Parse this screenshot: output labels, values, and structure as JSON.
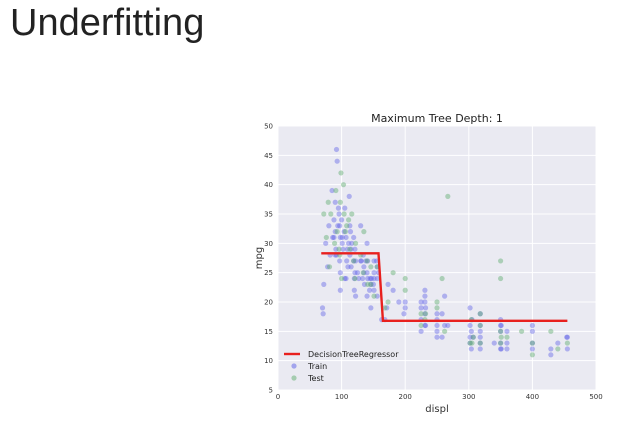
{
  "slide": {
    "title": "Underfitting"
  },
  "chart_data": {
    "type": "scatter",
    "title": "Maximum Tree Depth: 1",
    "xlabel": "displ",
    "ylabel": "mpg",
    "xlim": [
      0,
      500
    ],
    "ylim": [
      5,
      50
    ],
    "xticks": [
      0,
      100,
      200,
      300,
      400,
      500
    ],
    "yticks": [
      5,
      10,
      15,
      20,
      25,
      30,
      35,
      40,
      45,
      50
    ],
    "grid": true,
    "legend_position": "lower-left",
    "colors": {
      "background": "#eaeaf2",
      "grid": "#ffffff",
      "train": "#5a5ee8",
      "test": "#5fae6e",
      "regressor": "#e8201e"
    },
    "legend": [
      "DecisionTreeRegressor",
      "Train",
      "Test"
    ],
    "regressor": {
      "name": "DecisionTreeRegressor",
      "points": [
        [
          68,
          28.3
        ],
        [
          158,
          28.3
        ],
        [
          165,
          16.8
        ],
        [
          455,
          16.8
        ]
      ]
    },
    "series": [
      {
        "name": "Train",
        "points": [
          [
            70,
            19
          ],
          [
            71,
            18
          ],
          [
            72,
            23
          ],
          [
            75,
            30
          ],
          [
            78,
            26
          ],
          [
            80,
            33
          ],
          [
            82,
            28
          ],
          [
            85,
            39
          ],
          [
            86,
            31
          ],
          [
            88,
            34
          ],
          [
            90,
            37
          ],
          [
            90,
            32
          ],
          [
            90,
            28
          ],
          [
            91,
            29
          ],
          [
            92,
            46
          ],
          [
            93,
            44
          ],
          [
            95,
            36
          ],
          [
            96,
            35
          ],
          [
            97,
            33
          ],
          [
            97,
            27
          ],
          [
            98,
            31
          ],
          [
            98,
            25
          ],
          [
            98,
            22
          ],
          [
            100,
            34
          ],
          [
            101,
            30
          ],
          [
            102,
            29
          ],
          [
            104,
            32
          ],
          [
            105,
            24
          ],
          [
            105,
            36
          ],
          [
            107,
            24
          ],
          [
            108,
            27
          ],
          [
            110,
            26
          ],
          [
            112,
            38
          ],
          [
            113,
            28
          ],
          [
            114,
            32
          ],
          [
            115,
            26
          ],
          [
            116,
            30
          ],
          [
            119,
            31
          ],
          [
            120,
            24
          ],
          [
            120,
            22
          ],
          [
            121,
            25
          ],
          [
            122,
            27
          ],
          [
            122,
            21
          ],
          [
            125,
            25
          ],
          [
            130,
            33
          ],
          [
            130,
            27
          ],
          [
            133,
            24
          ],
          [
            134,
            28
          ],
          [
            135,
            26
          ],
          [
            136,
            23
          ],
          [
            140,
            30
          ],
          [
            140,
            25
          ],
          [
            140,
            21
          ],
          [
            141,
            27
          ],
          [
            144,
            22
          ],
          [
            145,
            24
          ],
          [
            146,
            19
          ],
          [
            150,
            23
          ],
          [
            151,
            27
          ],
          [
            151,
            25
          ],
          [
            151,
            22
          ],
          [
            155,
            27
          ],
          [
            156,
            26
          ],
          [
            156,
            21
          ],
          [
            163,
            17
          ],
          [
            168,
            17
          ],
          [
            171,
            19
          ],
          [
            173,
            23
          ],
          [
            181,
            22
          ],
          [
            190,
            20
          ],
          [
            198,
            18
          ],
          [
            200,
            20
          ],
          [
            200,
            19
          ],
          [
            225,
            20
          ],
          [
            225,
            19
          ],
          [
            225,
            17
          ],
          [
            231,
            20
          ],
          [
            231,
            22
          ],
          [
            231,
            18
          ],
          [
            232,
            19
          ],
          [
            250,
            16
          ],
          [
            250,
            18
          ],
          [
            250,
            17
          ],
          [
            258,
            18
          ],
          [
            262,
            16
          ],
          [
            267,
            16
          ],
          [
            302,
            14
          ],
          [
            302,
            16
          ],
          [
            302,
            19
          ],
          [
            304,
            15
          ],
          [
            305,
            17
          ],
          [
            307,
            14
          ],
          [
            318,
            15
          ],
          [
            318,
            14
          ],
          [
            318,
            16
          ],
          [
            318,
            13
          ],
          [
            340,
            13
          ],
          [
            350,
            15
          ],
          [
            350,
            13
          ],
          [
            350,
            16
          ],
          [
            350,
            17
          ],
          [
            351,
            16
          ],
          [
            360,
            12
          ],
          [
            360,
            13
          ],
          [
            400,
            16
          ],
          [
            400,
            15
          ],
          [
            400,
            13
          ],
          [
            429,
            12
          ],
          [
            440,
            13
          ],
          [
            454,
            14
          ],
          [
            455,
            14
          ],
          [
            88,
            31
          ],
          [
            92,
            28
          ],
          [
            94,
            33
          ],
          [
            101,
            31
          ],
          [
            107,
            31
          ],
          [
            109,
            29
          ],
          [
            111,
            30
          ],
          [
            113,
            33
          ],
          [
            115,
            29
          ],
          [
            119,
            27
          ],
          [
            121,
            29
          ],
          [
            127,
            24
          ],
          [
            131,
            27
          ],
          [
            135,
            25
          ],
          [
            138,
            27
          ],
          [
            141,
            24
          ],
          [
            146,
            23
          ],
          [
            147,
            24
          ],
          [
            151,
            24
          ],
          [
            156,
            24
          ],
          [
            158,
            25
          ],
          [
            232,
            16
          ],
          [
            250,
            14
          ],
          [
            258,
            14
          ],
          [
            302,
            13
          ],
          [
            304,
            12
          ],
          [
            318,
            12
          ],
          [
            318,
            18
          ],
          [
            350,
            12
          ],
          [
            351,
            12
          ],
          [
            360,
            15
          ],
          [
            400,
            12
          ],
          [
            429,
            11
          ],
          [
            455,
            12
          ],
          [
            225,
            15
          ],
          [
            231,
            21
          ],
          [
            231,
            16
          ],
          [
            250,
            15
          ],
          [
            262,
            21
          ]
        ]
      },
      {
        "name": "Test",
        "points": [
          [
            72,
            35
          ],
          [
            76,
            31
          ],
          [
            79,
            37
          ],
          [
            81,
            26
          ],
          [
            83,
            35
          ],
          [
            89,
            30
          ],
          [
            91,
            39
          ],
          [
            93,
            32
          ],
          [
            96,
            29
          ],
          [
            98,
            37
          ],
          [
            99,
            42
          ],
          [
            100,
            24
          ],
          [
            103,
            40
          ],
          [
            104,
            35
          ],
          [
            106,
            32
          ],
          [
            111,
            34
          ],
          [
            113,
            29
          ],
          [
            116,
            35
          ],
          [
            121,
            24
          ],
          [
            122,
            30
          ],
          [
            130,
            28
          ],
          [
            135,
            32
          ],
          [
            140,
            27
          ],
          [
            141,
            23
          ],
          [
            146,
            26
          ],
          [
            151,
            21
          ],
          [
            156,
            26
          ],
          [
            168,
            19
          ],
          [
            173,
            20
          ],
          [
            181,
            25
          ],
          [
            200,
            24
          ],
          [
            200,
            22
          ],
          [
            225,
            18
          ],
          [
            232,
            18
          ],
          [
            250,
            20
          ],
          [
            250,
            19
          ],
          [
            258,
            24
          ],
          [
            267,
            38
          ],
          [
            302,
            13
          ],
          [
            304,
            17
          ],
          [
            307,
            14
          ],
          [
            318,
            18
          ],
          [
            318,
            13
          ],
          [
            350,
            27
          ],
          [
            350,
            24
          ],
          [
            350,
            13
          ],
          [
            351,
            14
          ],
          [
            383,
            15
          ],
          [
            400,
            11
          ],
          [
            400,
            13
          ],
          [
            429,
            15
          ],
          [
            440,
            12
          ],
          [
            455,
            13
          ],
          [
            97,
            28
          ],
          [
            108,
            33
          ],
          [
            119,
            27
          ],
          [
            134,
            25
          ],
          [
            146,
            23
          ],
          [
            225,
            16
          ],
          [
            231,
            17
          ],
          [
            262,
            15
          ],
          [
            305,
            13
          ],
          [
            318,
            16
          ],
          [
            350,
            15
          ],
          [
            360,
            14
          ]
        ]
      }
    ]
  }
}
